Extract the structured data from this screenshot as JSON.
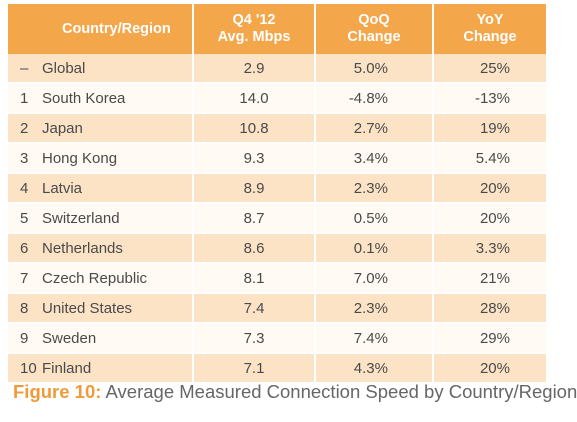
{
  "headers": {
    "country": "Country/Region",
    "speed_line1": "Q4 '12",
    "speed_line2": "Avg. Mbps",
    "qoq_line1": "QoQ",
    "qoq_line2": "Change",
    "yoy_line1": "YoY",
    "yoy_line2": "Change"
  },
  "rows": [
    {
      "rank": "–",
      "country": "Global",
      "speed": "2.9",
      "qoq": "5.0%",
      "yoy": "25%"
    },
    {
      "rank": "1",
      "country": "South Korea",
      "speed": "14.0",
      "qoq": "-4.8%",
      "yoy": "-13%"
    },
    {
      "rank": "2",
      "country": "Japan",
      "speed": "10.8",
      "qoq": "2.7%",
      "yoy": "19%"
    },
    {
      "rank": "3",
      "country": "Hong Kong",
      "speed": "9.3",
      "qoq": "3.4%",
      "yoy": "5.4%"
    },
    {
      "rank": "4",
      "country": "Latvia",
      "speed": "8.9",
      "qoq": "2.3%",
      "yoy": "20%"
    },
    {
      "rank": "5",
      "country": "Switzerland",
      "speed": "8.7",
      "qoq": "0.5%",
      "yoy": "20%"
    },
    {
      "rank": "6",
      "country": "Netherlands",
      "speed": "8.6",
      "qoq": "0.1%",
      "yoy": "3.3%"
    },
    {
      "rank": "7",
      "country": "Czech Republic",
      "speed": "8.1",
      "qoq": "7.0%",
      "yoy": "21%"
    },
    {
      "rank": "8",
      "country": "United States",
      "speed": "7.4",
      "qoq": "2.3%",
      "yoy": "28%"
    },
    {
      "rank": "9",
      "country": "Sweden",
      "speed": "7.3",
      "qoq": "7.4%",
      "yoy": "29%"
    },
    {
      "rank": "10",
      "country": "Finland",
      "speed": "7.1",
      "qoq": "4.3%",
      "yoy": "20%"
    }
  ],
  "caption": {
    "label": "Figure 10:",
    "text": "Average Measured Connection Speed by Country/Region"
  },
  "colors": {
    "header": "#f4a64a",
    "row_odd": "#fce3c6",
    "row_even": "#fffaf3",
    "caption_label": "#f09a3a"
  },
  "chart_data": {
    "type": "table",
    "columns": [
      "Country/Region",
      "Q4 '12 Avg. Mbps",
      "QoQ Change",
      "YoY Change"
    ],
    "rows": [
      [
        "–",
        "Global",
        2.9,
        "5.0%",
        "25%"
      ],
      [
        "1",
        "South Korea",
        14.0,
        "-4.8%",
        "-13%"
      ],
      [
        "2",
        "Japan",
        10.8,
        "2.7%",
        "19%"
      ],
      [
        "3",
        "Hong Kong",
        9.3,
        "3.4%",
        "5.4%"
      ],
      [
        "4",
        "Latvia",
        8.9,
        "2.3%",
        "20%"
      ],
      [
        "5",
        "Switzerland",
        8.7,
        "0.5%",
        "20%"
      ],
      [
        "6",
        "Netherlands",
        8.6,
        "0.1%",
        "3.3%"
      ],
      [
        "7",
        "Czech Republic",
        8.1,
        "7.0%",
        "21%"
      ],
      [
        "8",
        "United States",
        7.4,
        "2.3%",
        "28%"
      ],
      [
        "9",
        "Sweden",
        7.3,
        "7.4%",
        "29%"
      ],
      [
        "10",
        "Finland",
        7.1,
        "4.3%",
        "20%"
      ]
    ],
    "title": "Figure 10: Average Measured Connection Speed by Country/Region"
  }
}
